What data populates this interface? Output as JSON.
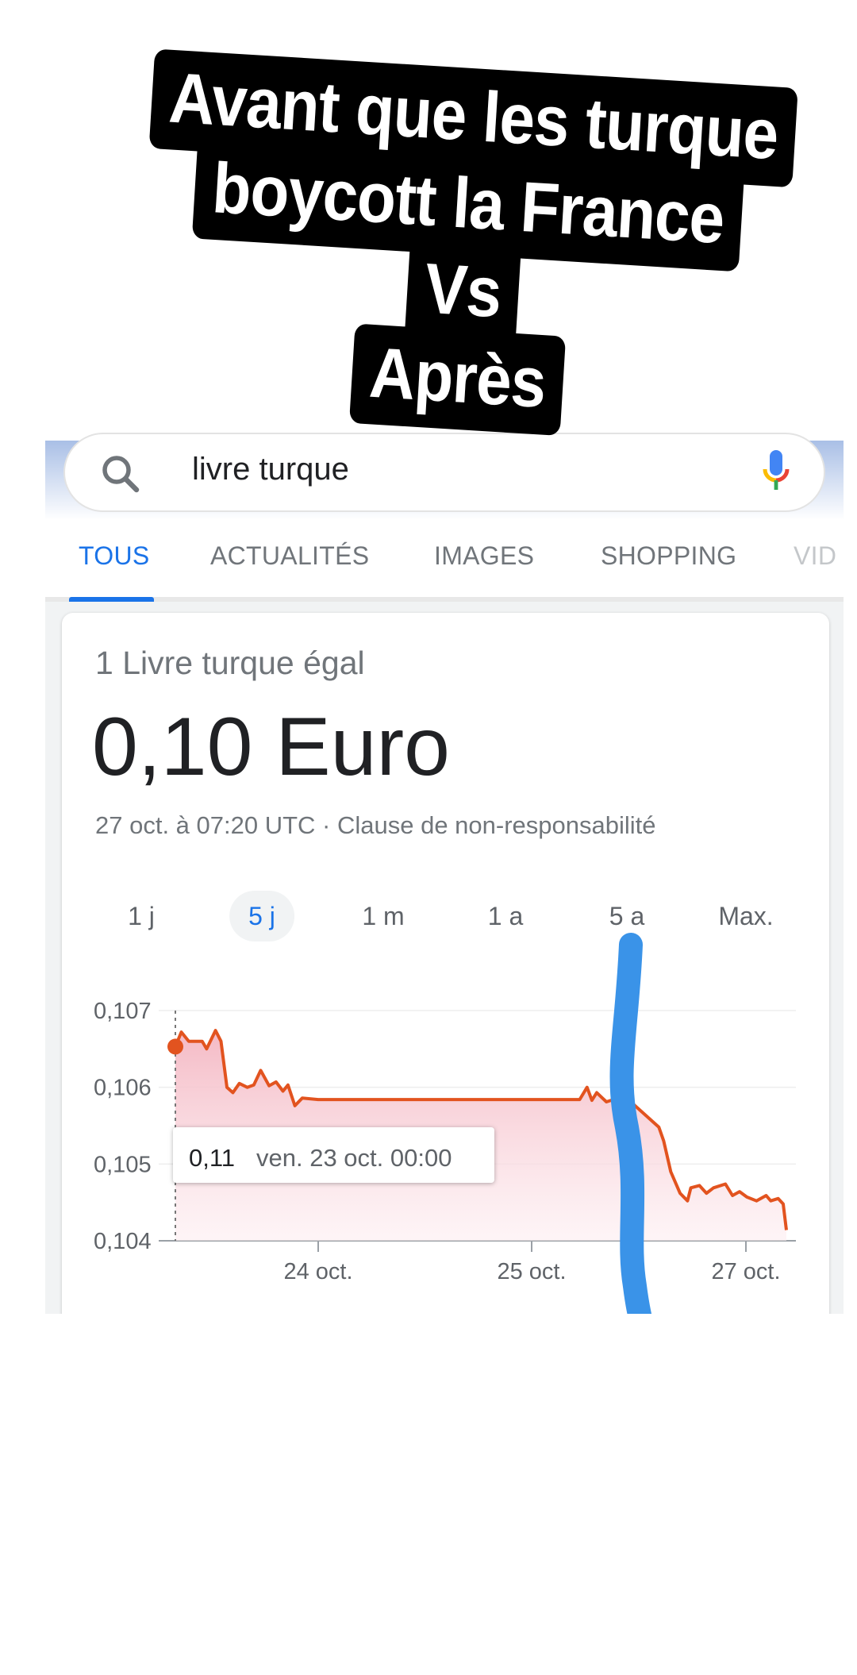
{
  "caption": {
    "lines": [
      "Avant que les turque",
      "boycott la France",
      "Vs",
      "Après"
    ]
  },
  "search": {
    "query": "livre turque",
    "icons": [
      "search-icon",
      "microphone-icon"
    ]
  },
  "tabs": [
    {
      "label": "TOUS",
      "active": true
    },
    {
      "label": "ACTUALITÉS",
      "active": false
    },
    {
      "label": "IMAGES",
      "active": false
    },
    {
      "label": "SHOPPING",
      "active": false
    },
    {
      "label": "VID",
      "active": false
    }
  ],
  "converter": {
    "equals_label": "1 Livre turque égal",
    "value": "0,10 Euro",
    "timestamp": "27 oct. à 07:20 UTC · Clause de non-responsabilité"
  },
  "ranges": [
    {
      "label": "1 j",
      "selected": false
    },
    {
      "label": "5 j",
      "selected": true
    },
    {
      "label": "1 m",
      "selected": false
    },
    {
      "label": "1 a",
      "selected": false
    },
    {
      "label": "5 a",
      "selected": false
    },
    {
      "label": "Max.",
      "selected": false
    }
  ],
  "chart_data": {
    "type": "area",
    "ylim": [
      0.104,
      0.107
    ],
    "y_ticks": [
      "0,107",
      "0,106",
      "0,105",
      "0,104"
    ],
    "x_ticks": [
      "24 oct.",
      "25 oct.",
      "27 oct."
    ],
    "grid": true,
    "line_color": "#e2531f",
    "fill_color": "#f4b6c2",
    "tooltip": {
      "value": "0,11",
      "label": "ven. 23 oct. 00:00"
    },
    "points": [
      [
        "23 oct. 00:00",
        0.10653
      ],
      [
        "23 oct. 01:00",
        0.10672
      ],
      [
        "23 oct. 02:15",
        0.1066
      ],
      [
        "23 oct. 04:30",
        0.1066
      ],
      [
        "23 oct. 05:15",
        0.1065
      ],
      [
        "23 oct. 06:45",
        0.10674
      ],
      [
        "23 oct. 07:40",
        0.1066
      ],
      [
        "23 oct. 08:40",
        0.106
      ],
      [
        "23 oct. 09:40",
        0.10593
      ],
      [
        "23 oct. 10:45",
        0.10605
      ],
      [
        "23 oct. 12:05",
        0.106
      ],
      [
        "23 oct. 13:10",
        0.10603
      ],
      [
        "23 oct. 14:20",
        0.10622
      ],
      [
        "23 oct. 15:45",
        0.10602
      ],
      [
        "23 oct. 16:55",
        0.10607
      ],
      [
        "23 oct. 18:05",
        0.10595
      ],
      [
        "23 oct. 18:55",
        0.10603
      ],
      [
        "23 oct. 20:05",
        0.10576
      ],
      [
        "23 oct. 21:20",
        0.10586
      ],
      [
        "24 oct. 00:00",
        0.10584
      ],
      [
        "25 oct. 10:45",
        0.10584
      ],
      [
        "25 oct. 12:25",
        0.106
      ],
      [
        "25 oct. 13:30",
        0.10583
      ],
      [
        "25 oct. 14:35",
        0.10593
      ],
      [
        "25 oct. 16:45",
        0.10581
      ],
      [
        "25 oct. 18:20",
        0.10584
      ],
      [
        "25 oct. 19:55",
        0.10593
      ],
      [
        "26 oct. 04:30",
        0.10548
      ],
      [
        "26 oct. 05:35",
        0.1053
      ],
      [
        "26 oct. 07:10",
        0.1049
      ],
      [
        "26 oct. 09:15",
        0.10462
      ],
      [
        "26 oct. 10:55",
        0.10452
      ],
      [
        "26 oct. 11:40",
        0.10469
      ],
      [
        "26 oct. 13:35",
        0.10472
      ],
      [
        "26 oct. 15:10",
        0.10462
      ],
      [
        "26 oct. 16:45",
        0.10469
      ],
      [
        "26 oct. 19:25",
        0.10474
      ],
      [
        "26 oct. 21:00",
        0.10459
      ],
      [
        "26 oct. 22:35",
        0.10464
      ],
      [
        "27 oct. 00:10",
        0.10457
      ],
      [
        "27 oct. 01:55",
        0.10452
      ],
      [
        "27 oct. 03:40",
        0.10459
      ],
      [
        "27 oct. 04:30",
        0.10452
      ],
      [
        "27 oct. 05:50",
        0.10455
      ],
      [
        "27 oct. 06:45",
        0.10448
      ],
      [
        "27 oct. 07:20",
        0.10414
      ]
    ]
  },
  "annotation": {
    "stroke_color": "#3a93e8"
  }
}
